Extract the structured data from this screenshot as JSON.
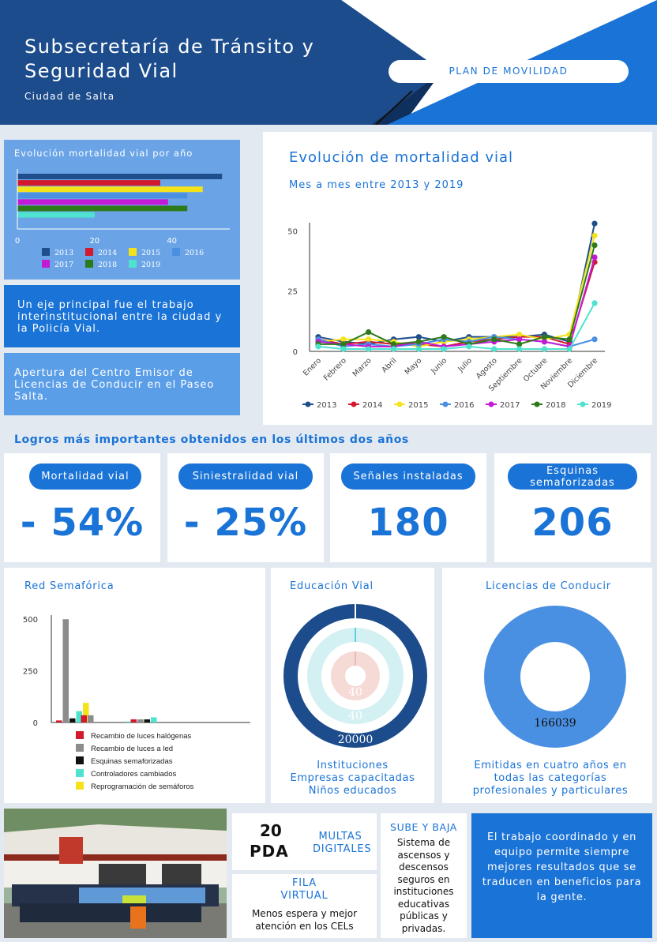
{
  "header": {
    "title_line1": "Subsecretaría de Tránsito y",
    "title_line2": "Seguridad Vial",
    "subtitle": "Ciudad de Salta",
    "pill": "PLAN DE MOVILIDAD"
  },
  "colors": {
    "navy": "#1c4c8c",
    "blue": "#1a73d6",
    "light_blue": "#6aa4e7",
    "s2013": "#1f4e8c",
    "s2014": "#d3192b",
    "s2015": "#f4e21b",
    "s2016": "#4a90e2",
    "s2017": "#c21ad6",
    "s2018": "#2d7a1a",
    "s2019": "#4fe3cf"
  },
  "panels": {
    "eje": "Un eje principal fue el trabajo interinstitucional entre la ciudad y la Policía Vial.",
    "apertura": "Apertura del Centro Emisor de Licencias de Conducir en el Paseo Salta."
  },
  "logros": {
    "title": "Logros más importantes obtenidos en los últimos dos años",
    "stats": [
      {
        "label": "Mortalidad vial",
        "value": "- 54%"
      },
      {
        "label": "Siniestralidad vial",
        "value": "- 25%"
      },
      {
        "label": "Señales instaladas",
        "value": "180"
      },
      {
        "label": "Esquinas semaforizadas",
        "value": "206"
      }
    ]
  },
  "red_title": "Red Semafórica",
  "edu": {
    "title": "Educación Vial",
    "captions": [
      "Instituciones",
      "Empresas capacitadas",
      "Niños educados"
    ]
  },
  "lic": {
    "title": "Licencias de Conducir",
    "caption": "Emitidas en cuatro años en todas las categorías profesionales y particulares"
  },
  "bottom": {
    "multas_num": "20",
    "multas_pda": "PDA",
    "multas_label1": "MULTAS",
    "multas_label2": "DIGITALES",
    "fila_title1": "FILA",
    "fila_title2": "VIRTUAL",
    "fila_text": "Menos espera y mejor atención en los CELs",
    "sube_title": "SUBE Y BAJA",
    "sube_text": "Sistema de ascensos y descensos seguros en instituciones educativas públicas y privadas.",
    "trabajo_text": "El trabajo coordinado y en equipo permite siempre mejores resultados que se traducen en beneficios para la gente."
  },
  "chart_data": [
    {
      "type": "bar",
      "orientation": "horizontal",
      "title": "Evolución mortalidad vial por año",
      "categories": [
        "2013",
        "2014",
        "2015",
        "2016",
        "2017",
        "2018",
        "2019"
      ],
      "values": [
        53,
        37,
        48,
        44,
        39,
        44,
        20
      ],
      "xlim": [
        0,
        55
      ],
      "xticks": [
        0,
        20,
        40
      ],
      "legend_position": "bottom",
      "grid": false
    },
    {
      "type": "line",
      "title": "Evolución de mortalidad vial",
      "subtitle": "Mes a mes entre 2013 y 2019",
      "x": [
        "Enero",
        "Febrero",
        "Marzo",
        "Abril",
        "Mayo",
        "Junio",
        "Julio",
        "Agosto",
        "Septiembre",
        "Octubre",
        "Noviembre",
        "Diciembre"
      ],
      "ylim": [
        0,
        55
      ],
      "yticks": [
        0,
        25,
        50
      ],
      "legend_position": "bottom",
      "grid": false,
      "series": [
        {
          "name": "2013",
          "values": [
            6,
            4,
            3,
            5,
            6,
            4,
            6,
            6,
            6,
            7,
            4,
            53
          ]
        },
        {
          "name": "2014",
          "values": [
            5,
            3,
            4,
            3,
            3,
            2,
            4,
            5,
            6,
            6,
            3,
            37
          ]
        },
        {
          "name": "2015",
          "values": [
            4,
            5,
            5,
            4,
            2,
            4,
            5,
            6,
            7,
            5,
            7,
            48
          ]
        },
        {
          "name": "2016",
          "values": [
            5,
            2,
            3,
            2,
            3,
            5,
            4,
            6,
            5,
            4,
            2,
            5
          ]
        },
        {
          "name": "2017",
          "values": [
            4,
            3,
            2,
            2,
            4,
            2,
            3,
            4,
            5,
            4,
            2,
            39
          ]
        },
        {
          "name": "2018",
          "values": [
            3,
            3,
            8,
            3,
            4,
            6,
            3,
            5,
            3,
            6,
            5,
            44
          ]
        },
        {
          "name": "2019",
          "values": [
            2,
            1,
            1,
            1,
            1,
            1,
            2,
            1,
            1,
            1,
            1,
            20
          ]
        }
      ]
    },
    {
      "type": "bar",
      "title": "Red Semafórica",
      "categories": [
        "2013",
        "2014",
        "2015",
        "2016",
        "2017",
        "2018",
        "2019",
        "2020"
      ],
      "ylim": [
        0,
        520
      ],
      "yticks": [
        0,
        250,
        500
      ],
      "legend_position": "bottom",
      "series": [
        {
          "name": "Recambio de luces halógenas",
          "values": [
            10,
            35,
            0,
            15,
            0,
            0,
            0,
            0
          ]
        },
        {
          "name": "Recambio de luces a led",
          "values": [
            500,
            35,
            0,
            15,
            0,
            0,
            0,
            0
          ]
        },
        {
          "name": "Esquinas semaforizadas",
          "values": [
            20,
            0,
            0,
            15,
            0,
            0,
            0,
            0
          ]
        },
        {
          "name": "Controladores cambiados",
          "values": [
            55,
            0,
            5,
            25,
            0,
            0,
            0,
            0
          ]
        },
        {
          "name": "Reprogramación de semáforos",
          "values": [
            95,
            0,
            0,
            0,
            0,
            0,
            0,
            0
          ]
        }
      ]
    },
    {
      "type": "pie",
      "variant": "nested-donut",
      "title": "Educación Vial",
      "rings": [
        {
          "name": "Niños educados",
          "value": "20000"
        },
        {
          "name": "Empresas capacitadas",
          "value": "40"
        },
        {
          "name": "Instituciones",
          "value": "40"
        }
      ]
    },
    {
      "type": "pie",
      "variant": "donut",
      "title": "Licencias de Conducir",
      "value": "166039"
    }
  ]
}
